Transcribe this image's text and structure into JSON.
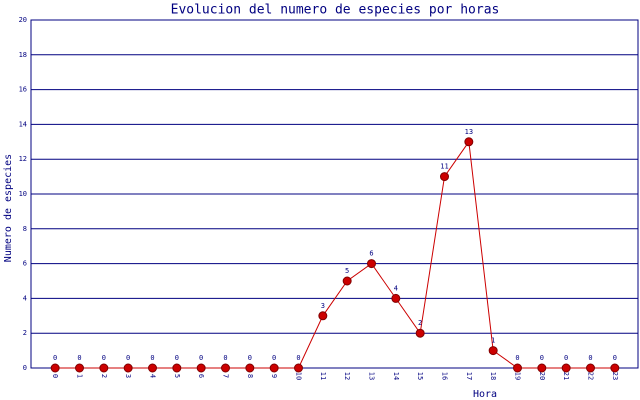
{
  "chart_data": {
    "type": "line",
    "title": "Evolucion del numero de especies por horas",
    "x_label": "Hora",
    "y_label": "Numero de especies",
    "categories": [
      "0",
      "1",
      "2",
      "3",
      "4",
      "5",
      "6",
      "7",
      "8",
      "9",
      "10",
      "11",
      "12",
      "13",
      "14",
      "15",
      "16",
      "17",
      "18",
      "19",
      "20",
      "21",
      "22",
      "23"
    ],
    "series": [
      {
        "color": "#cc0000",
        "values": [
          0,
          0,
          0,
          0,
          0,
          0,
          0,
          0,
          0,
          0,
          0,
          3,
          5,
          6,
          4,
          2,
          11,
          13,
          1,
          0,
          0,
          0,
          0,
          0
        ]
      }
    ],
    "ylim": [
      0,
      20
    ],
    "yticks": [
      0,
      2,
      4,
      6,
      8,
      10,
      12,
      14,
      16,
      18,
      20
    ],
    "grid": true
  }
}
